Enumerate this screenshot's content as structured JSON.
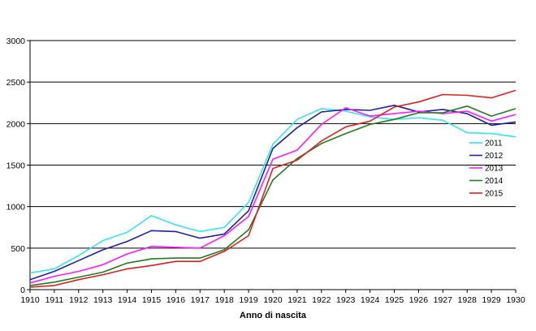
{
  "chart_data": {
    "type": "line",
    "title": "",
    "xlabel": "Anno di nascita",
    "ylabel": "",
    "categories": [
      "1910",
      "1911",
      "1912",
      "1913",
      "1914",
      "1915",
      "1916",
      "1917",
      "1918",
      "1919",
      "1920",
      "1921",
      "1922",
      "1923",
      "1924",
      "1925",
      "1926",
      "1927",
      "1928",
      "1929",
      "1930"
    ],
    "ylim": [
      0,
      3000
    ],
    "yticks": [
      "0",
      "500",
      "1000",
      "1500",
      "2000",
      "2500",
      "3000"
    ],
    "grid": "horizontal",
    "legend_position": "right",
    "series": [
      {
        "name": "2011",
        "color": "#33e6f2",
        "values": [
          200,
          250,
          410,
          590,
          690,
          890,
          780,
          700,
          750,
          1050,
          1750,
          2050,
          2180,
          2150,
          2080,
          2050,
          2070,
          2040,
          1890,
          1880,
          1840
        ]
      },
      {
        "name": "2012",
        "color": "#1f1fa8",
        "values": [
          120,
          220,
          350,
          480,
          580,
          710,
          700,
          620,
          670,
          950,
          1700,
          1950,
          2140,
          2170,
          2160,
          2220,
          2140,
          2170,
          2120,
          1980,
          2020
        ]
      },
      {
        "name": "2013",
        "color": "#ff1aff",
        "values": [
          80,
          160,
          220,
          300,
          430,
          520,
          510,
          500,
          650,
          880,
          1570,
          1680,
          1990,
          2190,
          2090,
          2120,
          2150,
          2120,
          2150,
          2030,
          2110
        ]
      },
      {
        "name": "2014",
        "color": "#1f7f1f",
        "values": [
          50,
          90,
          150,
          210,
          320,
          370,
          380,
          380,
          480,
          720,
          1320,
          1580,
          1760,
          1880,
          1990,
          2050,
          2130,
          2130,
          2210,
          2090,
          2180
        ]
      },
      {
        "name": "2015",
        "color": "#e01f1f",
        "values": [
          30,
          50,
          120,
          180,
          250,
          290,
          340,
          340,
          460,
          650,
          1460,
          1560,
          1790,
          1960,
          2030,
          2200,
          2260,
          2350,
          2340,
          2310,
          2400
        ]
      }
    ]
  }
}
